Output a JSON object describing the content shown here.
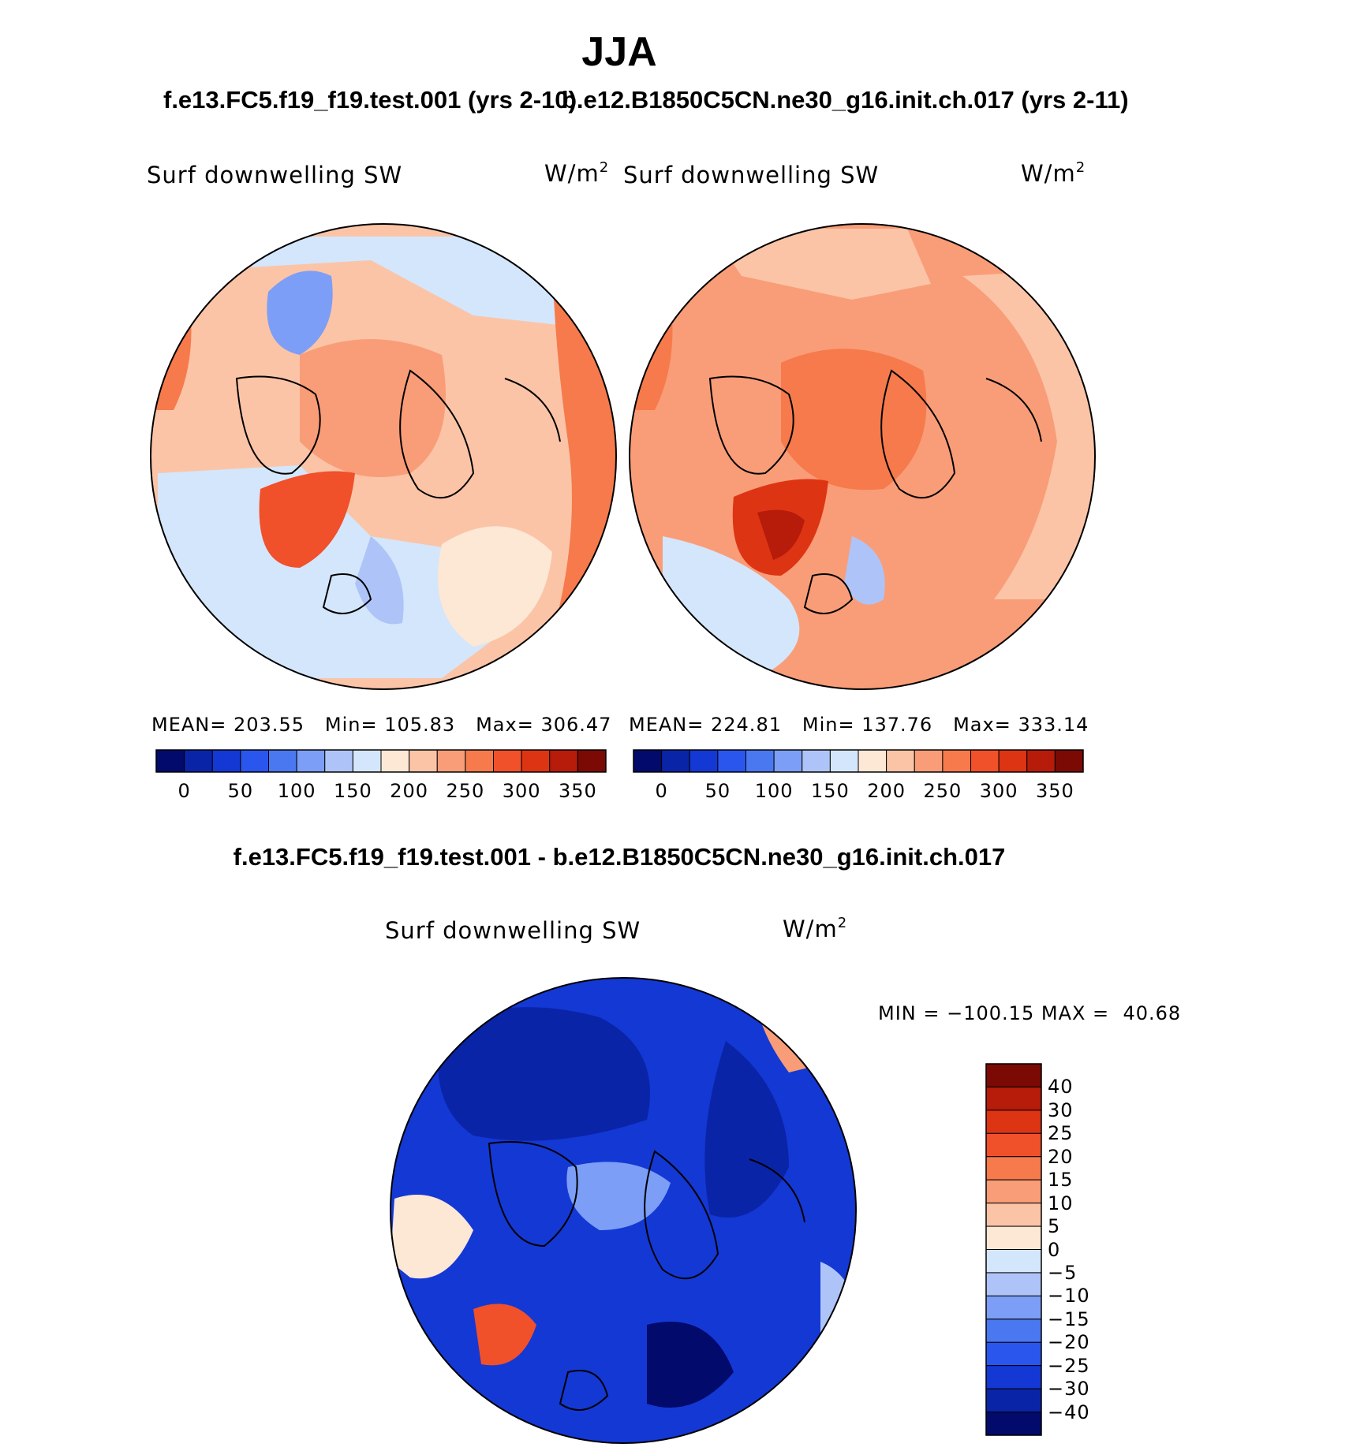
{
  "page": {
    "title": "JJA",
    "case_left_title": "f.e13.FC5.f19_f19.test.001 (yrs 2-10)",
    "case_right_title": "b.e12.B1850C5CN.ne30_g16.init.ch.017 (yrs 2-11)",
    "diff_title": "f.e13.FC5.f19_f19.test.001 - b.e12.B1850C5CN.ne30_g16.init.ch.017"
  },
  "panels": {
    "left": {
      "variable": "Surf downwelling SW",
      "units": "W/m",
      "units_exp": "2",
      "mean_label": "MEAN=",
      "mean": "203.55",
      "min_label": "Min=",
      "min": "105.83",
      "max_label": "Max=",
      "max": "306.47"
    },
    "right": {
      "variable": "Surf downwelling SW",
      "units": "W/m",
      "units_exp": "2",
      "mean_label": "MEAN=",
      "mean": "224.81",
      "min_label": "Min=",
      "min": "137.76",
      "max_label": "Max=",
      "max": "333.14"
    },
    "diff": {
      "variable": "Surf downwelling SW",
      "units": "W/m",
      "units_exp": "2",
      "min_label": "MIN =",
      "min": "−100.15",
      "max_label": "MAX =",
      "max": "40.68"
    }
  },
  "chart_data": [
    {
      "type": "heatmap",
      "title": "Surf downwelling SW",
      "case": "f.e13.FC5.f19_f19.test.001 (yrs 2-10)",
      "units": "W/m2",
      "projection": "north polar stereographic",
      "season": "JJA",
      "mean": 203.55,
      "min": 105.83,
      "max": 306.47,
      "colorbar_levels": [
        0,
        25,
        50,
        75,
        100,
        125,
        150,
        175,
        200,
        225,
        250,
        275,
        300,
        325,
        350
      ],
      "colorbar_tick_labels": [
        "0",
        "50",
        "100",
        "150",
        "200",
        "250",
        "300",
        "350"
      ],
      "colors": [
        "#020a6b",
        "#0a24a8",
        "#1438d4",
        "#2a56ee",
        "#4a78f0",
        "#7c9ef6",
        "#aec4f8",
        "#d4e6fb",
        "#fde7d5",
        "#fbc4a7",
        "#f99d78",
        "#f67a4c",
        "#f0502a",
        "#dd3414",
        "#b71b0a",
        "#7b0a04"
      ]
    },
    {
      "type": "heatmap",
      "title": "Surf downwelling SW",
      "case": "b.e12.B1850C5CN.ne30_g16.init.ch.017 (yrs 2-11)",
      "units": "W/m2",
      "projection": "north polar stereographic",
      "season": "JJA",
      "mean": 224.81,
      "min": 137.76,
      "max": 333.14,
      "colorbar_levels": [
        0,
        25,
        50,
        75,
        100,
        125,
        150,
        175,
        200,
        225,
        250,
        275,
        300,
        325,
        350
      ],
      "colorbar_tick_labels": [
        "0",
        "50",
        "100",
        "150",
        "200",
        "250",
        "300",
        "350"
      ],
      "colors": [
        "#020a6b",
        "#0a24a8",
        "#1438d4",
        "#2a56ee",
        "#4a78f0",
        "#7c9ef6",
        "#aec4f8",
        "#d4e6fb",
        "#fde7d5",
        "#fbc4a7",
        "#f99d78",
        "#f67a4c",
        "#f0502a",
        "#dd3414",
        "#b71b0a",
        "#7b0a04"
      ]
    },
    {
      "type": "heatmap",
      "title": "Surf downwelling SW",
      "case": "f.e13.FC5.f19_f19.test.001 - b.e12.B1850C5CN.ne30_g16.init.ch.017",
      "units": "W/m2",
      "projection": "north polar stereographic",
      "season": "JJA",
      "min": -100.15,
      "max": 40.68,
      "colorbar_levels": [
        -40,
        -30,
        -25,
        -20,
        -15,
        -10,
        -5,
        0,
        5,
        10,
        15,
        20,
        25,
        30,
        40
      ],
      "colorbar_tick_labels": [
        "40",
        "30",
        "25",
        "20",
        "15",
        "10",
        "5",
        "0",
        "−5",
        "−10",
        "−15",
        "−20",
        "−25",
        "−30",
        "−40"
      ],
      "colors": [
        "#7b0a04",
        "#b71b0a",
        "#dd3414",
        "#f0502a",
        "#f67a4c",
        "#f99d78",
        "#fbc4a7",
        "#fde7d5",
        "#d4e6fb",
        "#aec4f8",
        "#7c9ef6",
        "#4a78f0",
        "#2a56ee",
        "#1438d4",
        "#0a24a8",
        "#020a6b"
      ]
    }
  ]
}
